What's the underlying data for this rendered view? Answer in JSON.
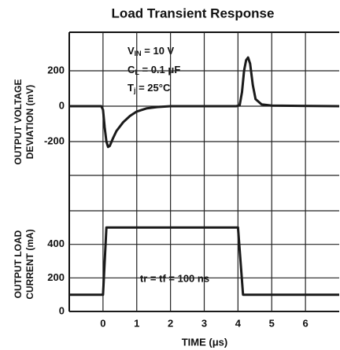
{
  "chart_data": [
    {
      "type": "line",
      "title": "Load Transient Response",
      "ylabel": [
        "OUTPUT VOLTAGE",
        "DEVIATION (mV)"
      ],
      "xlim": [
        -1,
        7
      ],
      "ylim": [
        -600,
        400
      ],
      "yticks": [
        -200,
        0,
        200
      ],
      "annotations": [
        [
          "V",
          "IN",
          " = 10 V"
        ],
        [
          "C",
          "L",
          " = 0.1 μF"
        ],
        [
          "T",
          "j",
          " = 25°C"
        ]
      ],
      "series": [
        {
          "color": "#1a1a1a",
          "x": [
            -1,
            -0.05,
            0,
            0.05,
            0.1,
            0.15,
            0.2,
            0.3,
            0.4,
            0.6,
            0.8,
            1.0,
            1.3,
            1.6,
            2,
            3.95,
            4.05,
            4.12,
            4.18,
            4.24,
            4.3,
            4.36,
            4.44,
            4.52,
            4.7,
            5,
            7
          ],
          "values": [
            0,
            0,
            -20,
            -120,
            -200,
            -230,
            -225,
            -180,
            -140,
            -90,
            -55,
            -30,
            -12,
            -5,
            0,
            0,
            5,
            80,
            200,
            260,
            275,
            240,
            120,
            40,
            10,
            3,
            0
          ]
        }
      ]
    },
    {
      "type": "line",
      "ylabel": [
        "OUTPUT LOAD",
        "CURRENT (mA)"
      ],
      "xlabel": "TIME (μs)",
      "xlim": [
        -1,
        7
      ],
      "xticks": [
        0,
        1,
        2,
        3,
        4,
        5,
        6
      ],
      "ylim": [
        0,
        600
      ],
      "yticks": [
        0,
        200,
        400
      ],
      "annotation": "tr = tf = 100 ns",
      "series": [
        {
          "color": "#1a1a1a",
          "x": [
            -1,
            0,
            0.1,
            4.0,
            4.15,
            7
          ],
          "values": [
            100,
            100,
            500,
            500,
            100,
            100
          ]
        }
      ]
    }
  ]
}
